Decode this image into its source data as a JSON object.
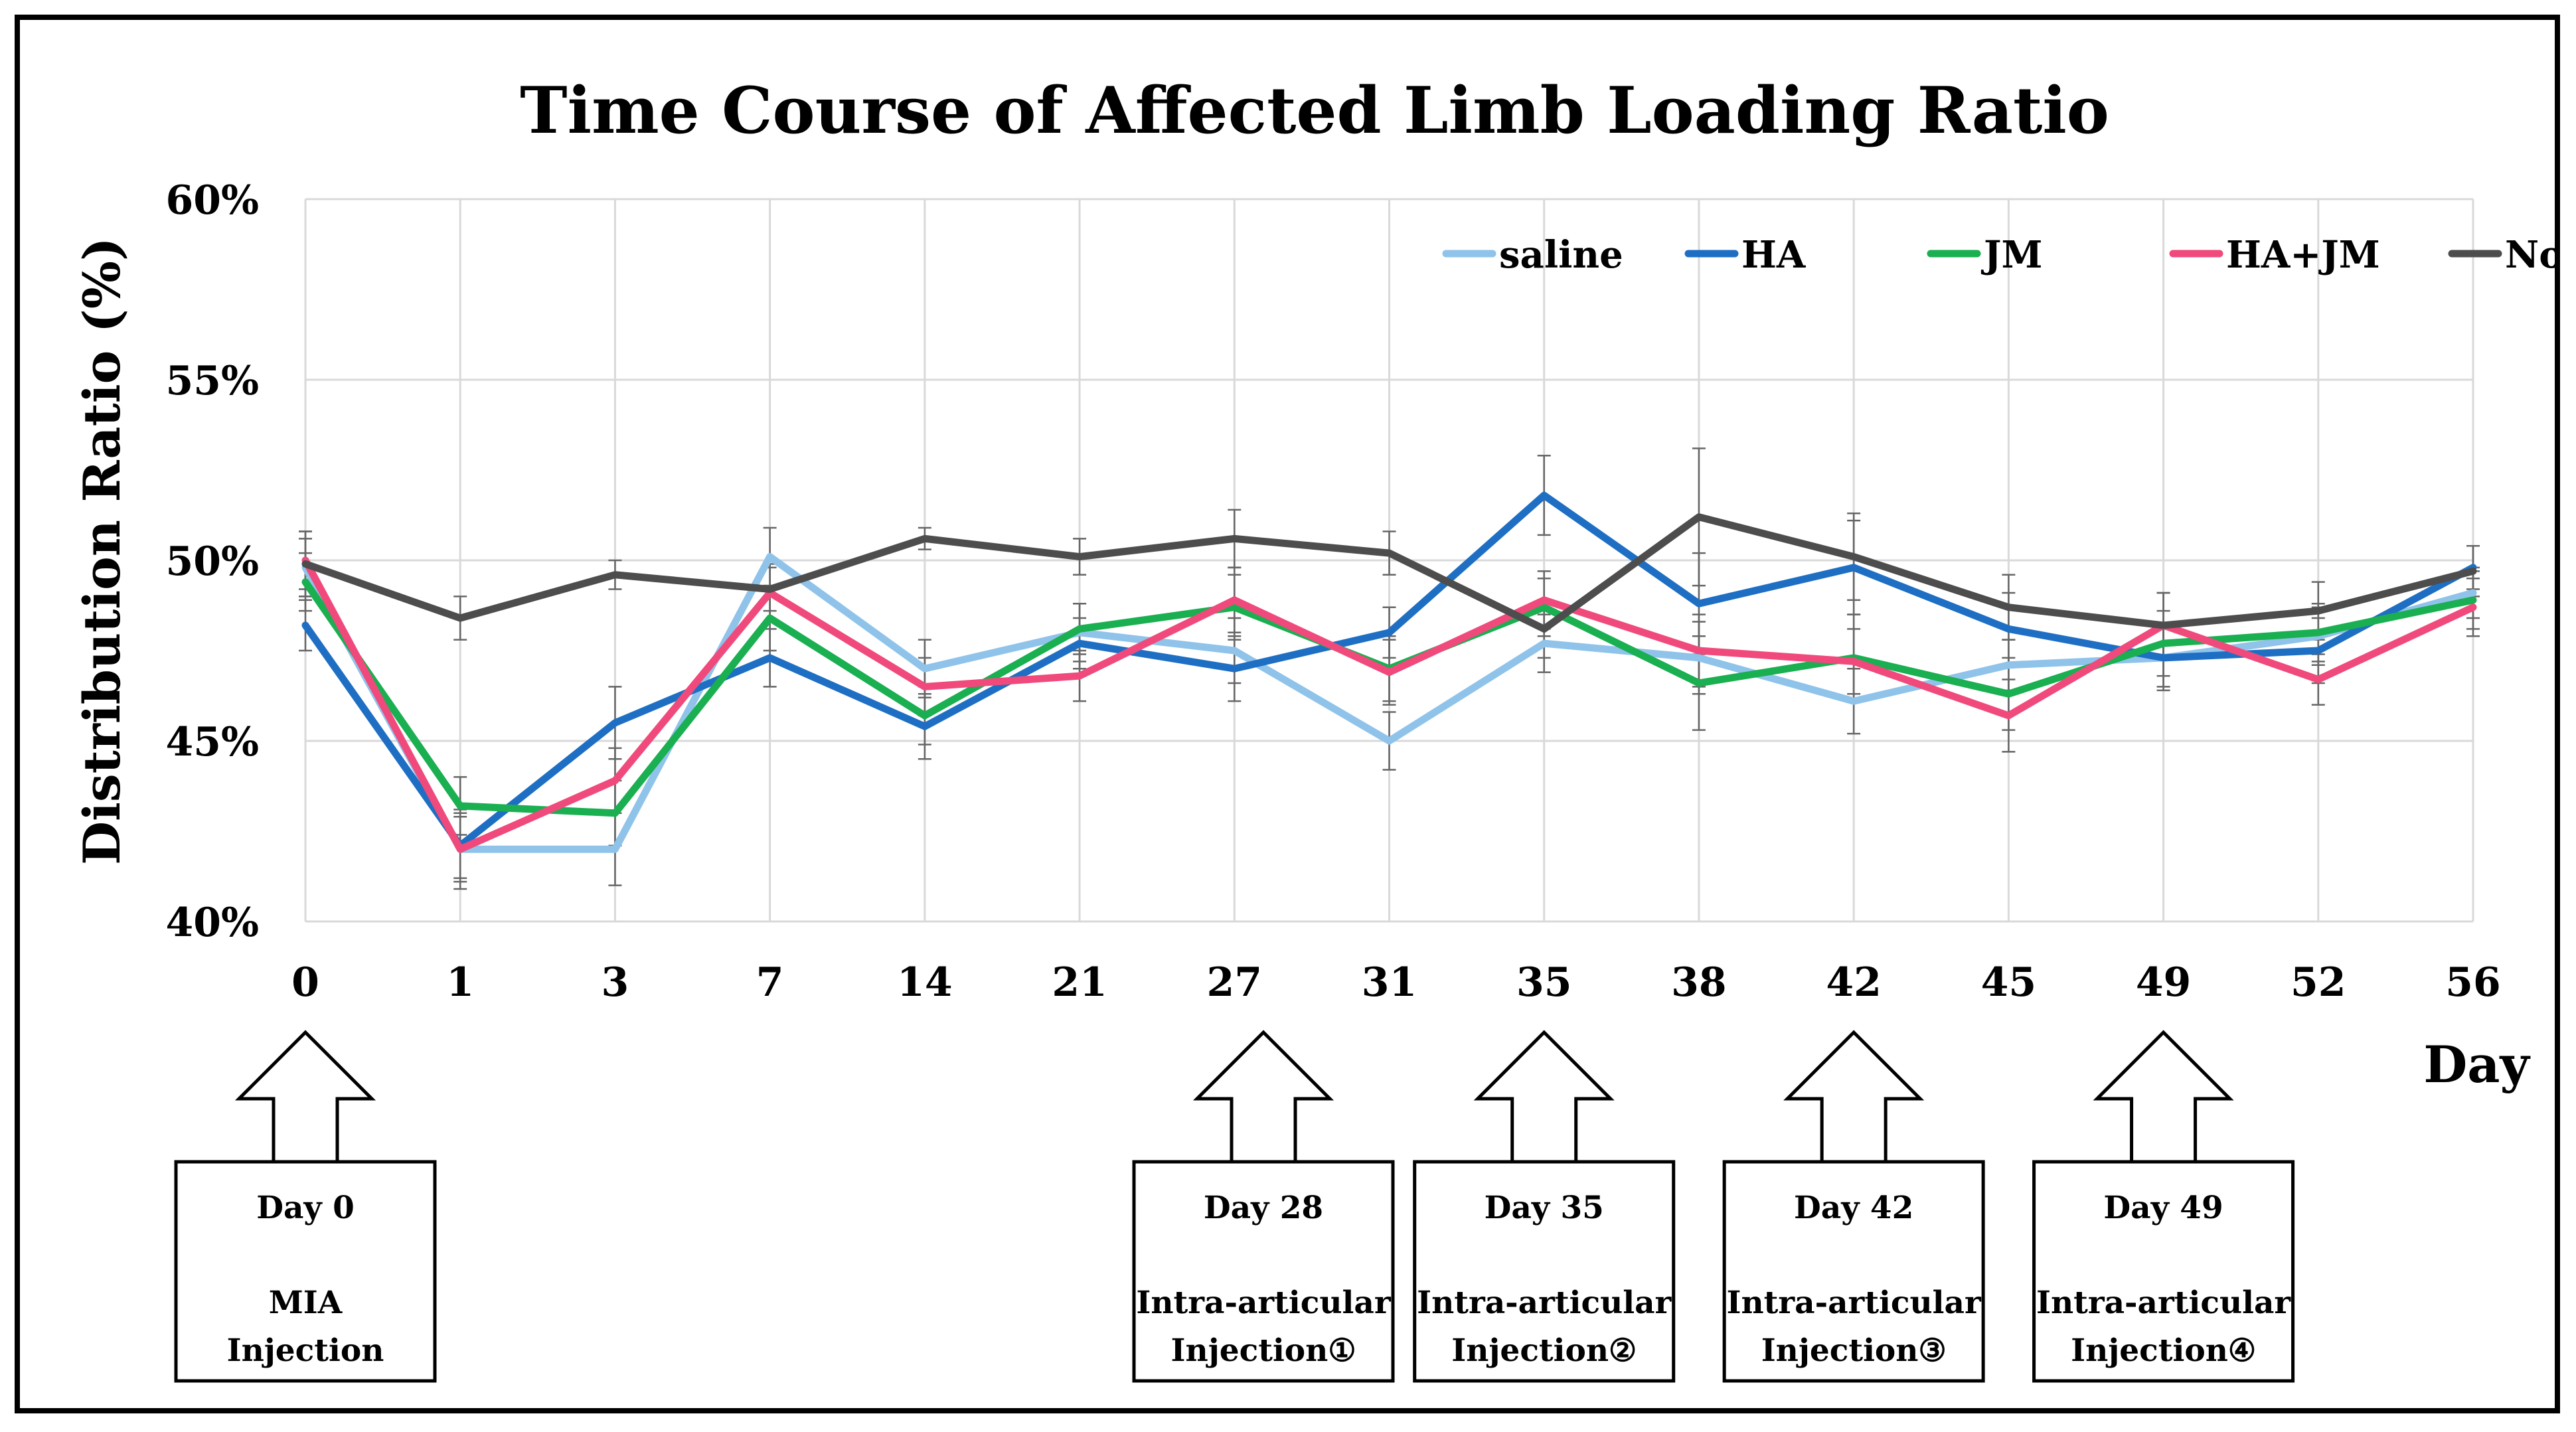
{
  "chart_data": {
    "type": "line",
    "title": "Time Course of Affected Limb Loading Ratio",
    "ylabel": "Distribution Ratio (%)",
    "xlabel": "Day",
    "categories": [
      "0",
      "1",
      "3",
      "7",
      "14",
      "21",
      "27",
      "31",
      "35",
      "38",
      "42",
      "45",
      "49",
      "52",
      "56"
    ],
    "ylim": [
      40,
      60
    ],
    "ytick_values": [
      40,
      45,
      50,
      55,
      60
    ],
    "ytick_labels": [
      "40%",
      "45%",
      "50%",
      "55%",
      "60%"
    ],
    "grid": "vertical",
    "legend_position": "top-right",
    "series": [
      {
        "name": "saline",
        "color": "#8fc3ea",
        "values": [
          49.8,
          42.0,
          42.0,
          50.1,
          47.0,
          48.0,
          47.5,
          45.0,
          47.7,
          47.3,
          46.1,
          47.1,
          47.3,
          47.9,
          49.1
        ],
        "errors": [
          0.8,
          0.9,
          1.0,
          0.8,
          0.8,
          0.8,
          0.9,
          0.8,
          0.8,
          1.0,
          0.9,
          0.7,
          0.8,
          0.8,
          0.7
        ]
      },
      {
        "name": "HA",
        "color": "#1e6fc3",
        "values": [
          48.2,
          42.1,
          45.5,
          47.3,
          45.4,
          47.7,
          47.0,
          48.0,
          51.8,
          48.8,
          49.8,
          48.1,
          47.3,
          47.5,
          49.8
        ],
        "errors": [
          0.7,
          0.9,
          1.0,
          0.8,
          0.9,
          0.7,
          0.9,
          0.7,
          1.1,
          1.4,
          1.3,
          1.0,
          0.9,
          0.9,
          0.6
        ]
      },
      {
        "name": "JM",
        "color": "#1aaf50",
        "values": [
          49.4,
          43.2,
          43.0,
          48.4,
          45.7,
          48.1,
          48.7,
          47.0,
          48.7,
          46.6,
          47.3,
          46.3,
          47.7,
          48.0,
          48.9
        ],
        "errors": [
          0.8,
          0.8,
          0.9,
          0.9,
          0.8,
          0.7,
          0.9,
          0.9,
          0.8,
          1.3,
          1.2,
          1.0,
          0.9,
          0.8,
          0.8
        ]
      },
      {
        "name": "HA+JM",
        "color": "#f04a7d",
        "values": [
          50.0,
          42.0,
          43.9,
          49.1,
          46.5,
          46.8,
          48.9,
          46.9,
          48.9,
          47.5,
          47.2,
          45.7,
          48.2,
          46.7,
          48.7
        ],
        "errors": [
          0.8,
          1.1,
          0.9,
          0.8,
          0.8,
          0.7,
          0.9,
          0.9,
          0.8,
          1.0,
          0.9,
          1.0,
          0.9,
          0.7,
          0.8
        ]
      },
      {
        "name": "Normal",
        "color": "#4d4d4d",
        "values": [
          49.9,
          48.4,
          49.6,
          49.2,
          50.6,
          50.1,
          50.6,
          50.2,
          48.1,
          51.2,
          50.1,
          48.7,
          48.2,
          48.6,
          49.7
        ],
        "errors": [
          0.9,
          0.6,
          0.4,
          0.6,
          0.3,
          0.5,
          0.8,
          0.6,
          0.8,
          1.9,
          1.2,
          0.9,
          0.9,
          0.8,
          0.7
        ]
      }
    ],
    "annotations": [
      {
        "day": "0",
        "date_label": "Day 0",
        "line1": "MIA",
        "line2": "Injection"
      },
      {
        "day": "27",
        "date_label": "Day 28",
        "line1": "Intra-articular",
        "line2": "Injection①"
      },
      {
        "day": "35",
        "date_label": "Day 35",
        "line1": "Intra-articular",
        "line2": "Injection②"
      },
      {
        "day": "42",
        "date_label": "Day 42",
        "line1": "Intra-articular",
        "line2": "Injection③"
      },
      {
        "day": "49",
        "date_label": "Day 49",
        "line1": "Intra-articular",
        "line2": "Injection④"
      }
    ]
  }
}
